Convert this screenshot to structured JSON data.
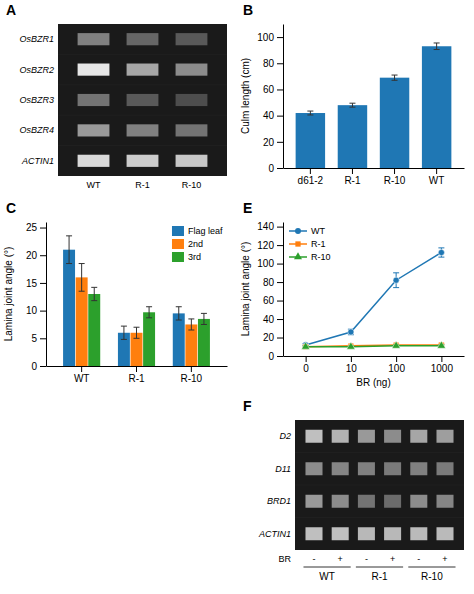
{
  "chart_data": [
    {
      "type": "heatmap",
      "title": "A",
      "x": [
        "WT",
        "R-1",
        "R-10"
      ],
      "y": [
        "OsBZR1",
        "OsBZR2",
        "OsBZR3",
        "OsBZR4",
        "ACTIN1"
      ],
      "cells": [
        [
          0.5,
          0.4,
          0.35
        ],
        [
          0.9,
          0.65,
          0.55
        ],
        [
          0.45,
          0.35,
          0.3
        ],
        [
          0.6,
          0.5,
          0.45
        ],
        [
          0.85,
          0.8,
          0.78
        ]
      ],
      "color": "#1a1a1a"
    },
    {
      "type": "bar",
      "title": "B",
      "categories": [
        "d61-2",
        "R-1",
        "R-10",
        "WT"
      ],
      "values": [
        42,
        48,
        69,
        93
      ],
      "errors": [
        1.5,
        1.5,
        2.0,
        2.5
      ],
      "ylabel": "Culm length (cm)",
      "ylim": [
        0,
        110
      ],
      "yticks": [
        0,
        20,
        40,
        60,
        80,
        100
      ]
    },
    {
      "type": "bar",
      "title": "C",
      "categories": [
        "WT",
        "R-1",
        "R-10"
      ],
      "series": [
        {
          "name": "Flag leaf",
          "values": [
            21.0,
            6.0,
            9.5
          ],
          "errors": [
            2.5,
            1.2,
            1.2
          ]
        },
        {
          "name": "2nd",
          "values": [
            16.0,
            6.0,
            7.5
          ],
          "errors": [
            2.5,
            1.0,
            1.0
          ]
        },
        {
          "name": "3rd",
          "values": [
            13.0,
            9.7,
            8.5
          ],
          "errors": [
            1.2,
            1.0,
            1.0
          ]
        }
      ],
      "ylabel": "Lamina joint angle (°)",
      "ylim": [
        0,
        26
      ],
      "yticks": [
        0,
        5,
        10,
        15,
        20,
        25
      ],
      "legend": "upper right"
    },
    {
      "type": "line",
      "title": "E",
      "categories": [
        "0",
        "10",
        "100",
        "1000"
      ],
      "series": [
        {
          "name": "WT",
          "marker": "circle",
          "values": [
            12,
            26,
            82,
            112
          ],
          "errors": [
            1.5,
            3,
            8,
            5
          ]
        },
        {
          "name": "R-1",
          "marker": "square",
          "values": [
            10,
            11,
            12,
            12
          ],
          "errors": [
            1,
            1.2,
            1.2,
            1.2
          ]
        },
        {
          "name": "R-10",
          "marker": "triangle",
          "values": [
            10,
            10,
            11,
            11
          ],
          "errors": [
            1,
            1,
            1.2,
            1.2
          ]
        }
      ],
      "xlabel": "BR (ng)",
      "ylabel": "Lamina joint angle (°)",
      "ylim": [
        0,
        145
      ],
      "yticks": [
        0,
        20,
        40,
        60,
        80,
        100,
        120,
        140
      ],
      "legend": "upper left"
    },
    {
      "type": "heatmap",
      "title": "F",
      "x": [
        "-",
        "+",
        "-",
        "+",
        "-",
        "+"
      ],
      "xlabel": "BR",
      "groups": [
        "WT",
        "R-1",
        "R-10"
      ],
      "y": [
        "D2",
        "D11",
        "BRD1",
        "ACTIN1"
      ],
      "cells": [
        [
          0.75,
          0.7,
          0.6,
          0.55,
          0.65,
          0.62
        ],
        [
          0.55,
          0.52,
          0.5,
          0.48,
          0.5,
          0.48
        ],
        [
          0.6,
          0.55,
          0.45,
          0.42,
          0.55,
          0.52
        ],
        [
          0.75,
          0.75,
          0.72,
          0.72,
          0.73,
          0.73
        ]
      ],
      "color": "#1a1a1a"
    }
  ]
}
